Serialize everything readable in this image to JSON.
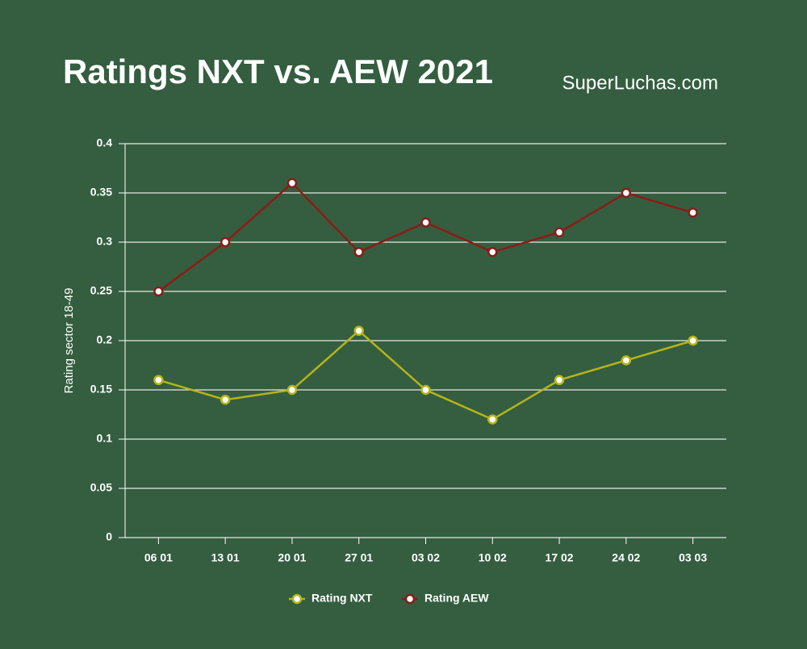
{
  "chart_data": {
    "type": "line",
    "title": "Ratings NXT vs. AEW 2021",
    "source": "SuperLuchas.com",
    "y_label": "Rating sector 18-49",
    "categories": [
      "06 01",
      "13 01",
      "20 01",
      "27 01",
      "03 02",
      "10 02",
      "17 02",
      "24 02",
      "03 03"
    ],
    "series": [
      {
        "name": "Rating NXT",
        "color": "#b5b41c",
        "values": [
          0.16,
          0.14,
          0.15,
          0.21,
          0.15,
          0.12,
          0.16,
          0.18,
          0.2
        ]
      },
      {
        "name": "Rating AEW",
        "color": "#8b1c17",
        "values": [
          0.25,
          0.3,
          0.36,
          0.29,
          0.32,
          0.29,
          0.31,
          0.35,
          0.33
        ]
      }
    ],
    "ylim": [
      0,
      0.4
    ],
    "yticks": [
      0,
      0.05,
      0.1,
      0.15,
      0.2,
      0.25,
      0.3,
      0.35,
      0.4
    ],
    "grid": true
  }
}
